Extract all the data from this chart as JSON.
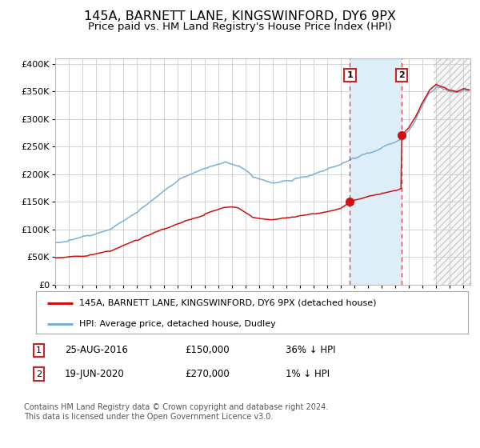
{
  "title": "145A, BARNETT LANE, KINGSWINFORD, DY6 9PX",
  "subtitle": "Price paid vs. HM Land Registry's House Price Index (HPI)",
  "title_fontsize": 11.5,
  "subtitle_fontsize": 9.5,
  "ylim": [
    0,
    410000
  ],
  "yticks": [
    0,
    50000,
    100000,
    150000,
    200000,
    250000,
    300000,
    350000,
    400000
  ],
  "ytick_labels": [
    "£0",
    "£50K",
    "£100K",
    "£150K",
    "£200K",
    "£250K",
    "£300K",
    "£350K",
    "£400K"
  ],
  "hpi_color": "#7ab0d4",
  "price_color": "#cc1111",
  "marker_color": "#cc1111",
  "vline_color": "#dd4444",
  "shade_color": "#deeef8",
  "hatch_color": "#dddddd",
  "grid_color": "#cccccc",
  "background_color": "#ffffff",
  "label1": "145A, BARNETT LANE, KINGSWINFORD, DY6 9PX (detached house)",
  "label2": "HPI: Average price, detached house, Dudley",
  "annotation1_date": "25-AUG-2016",
  "annotation1_price": "£150,000",
  "annotation1_hpi": "36% ↓ HPI",
  "annotation2_date": "19-JUN-2020",
  "annotation2_price": "£270,000",
  "annotation2_hpi": "1% ↓ HPI",
  "sale1_year": 2016.65,
  "sale1_price": 150000,
  "sale2_year": 2020.46,
  "sale2_price": 270000,
  "xmin": 1995,
  "xmax": 2025.5,
  "hatch_start": 2022.8,
  "footnote": "Contains HM Land Registry data © Crown copyright and database right 2024.\nThis data is licensed under the Open Government Licence v3.0."
}
